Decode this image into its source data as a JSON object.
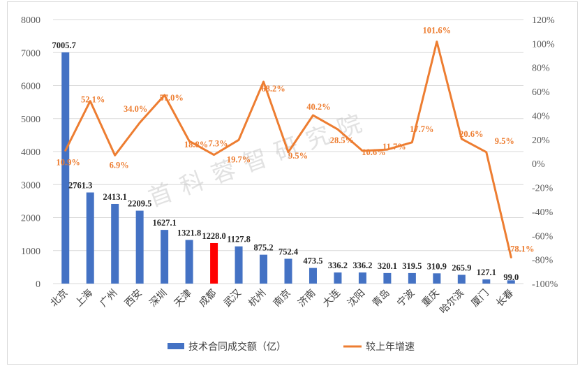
{
  "chart_data": {
    "type": "bar",
    "title": "",
    "categories": [
      "北京",
      "上海",
      "广州",
      "西安",
      "深圳",
      "天津",
      "成都",
      "武汉",
      "杭州",
      "南京",
      "济南",
      "大连",
      "沈阳",
      "青岛",
      "宁波",
      "重庆",
      "哈尔滨",
      "厦门",
      "长春"
    ],
    "series": [
      {
        "name": "技术合同成交额（亿）",
        "type": "bar",
        "axis": "left",
        "color": "#4472C4",
        "highlight_color": "#FF0000",
        "highlight_category": "成都",
        "values": [
          7005.7,
          2761.3,
          2413.1,
          2209.5,
          1627.1,
          1321.8,
          1228.0,
          1127.8,
          875.2,
          752.4,
          473.5,
          336.2,
          336.2,
          320.1,
          319.5,
          310.9,
          265.9,
          127.1,
          99.0
        ],
        "labels": [
          "7005.7",
          "2761.3",
          "2413.1",
          "2209.5",
          "1627.1",
          "1321.8",
          "1228.0",
          "1127.8",
          "875.2",
          "752.4",
          "473.5",
          "336.2",
          "336.2",
          "320.1",
          "319.5",
          "310.9",
          "265.9",
          "127.1",
          "99.0"
        ]
      },
      {
        "name": "较上年增速",
        "type": "line",
        "axis": "right",
        "color": "#ED7D31",
        "values": [
          10.9,
          52.1,
          6.9,
          34.0,
          57.0,
          18.8,
          7.3,
          19.7,
          68.2,
          9.5,
          40.2,
          28.5,
          10.6,
          11.7,
          17.7,
          101.6,
          20.6,
          9.5,
          -78.1
        ],
        "labels": [
          "10.9%",
          "52.1%",
          "6.9%",
          "34.0%",
          "57.0%",
          "18.8%",
          "7.3%",
          "19.7%",
          "68.2%",
          "9.5%",
          "40.2%",
          "28.5%",
          "10.6%",
          "11.7%",
          "17.7%",
          "101.6%",
          "20.6%",
          "9.5%",
          "-78.1%"
        ]
      }
    ],
    "y_left": {
      "min": 0,
      "max": 8000,
      "ticks": [
        "0",
        "1000",
        "2000",
        "3000",
        "4000",
        "5000",
        "6000",
        "7000",
        "8000"
      ]
    },
    "y_right": {
      "min": -100,
      "max": 120,
      "ticks": [
        "-100%",
        "-80%",
        "-60%",
        "-40%",
        "-20%",
        "0%",
        "20%",
        "40%",
        "60%",
        "80%",
        "100%",
        "120%"
      ]
    },
    "grid": true,
    "legend_position": "bottom",
    "watermark": "首科蓉智研究院"
  }
}
